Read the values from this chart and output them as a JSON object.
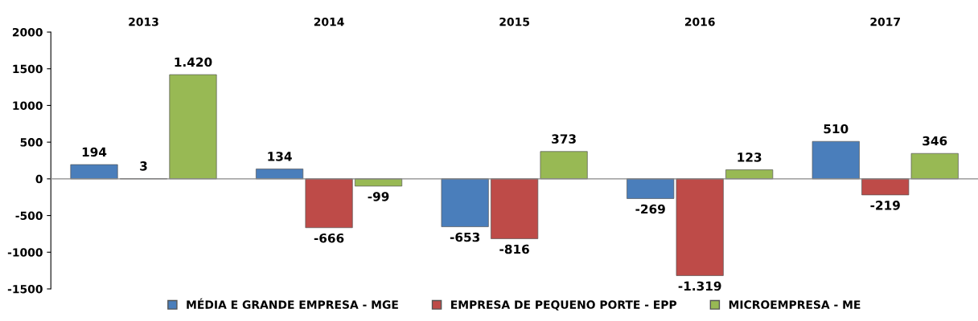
{
  "chart_data": {
    "type": "bar",
    "categories": [
      "2013",
      "2014",
      "2015",
      "2016",
      "2017"
    ],
    "series": [
      {
        "name": "MÉDIA E GRANDE EMPRESA - MGE",
        "color": "#4a7ebb",
        "values": [
          194,
          134,
          -653,
          -269,
          510
        ],
        "value_labels": [
          "194",
          "134",
          "-653",
          "-269",
          "510"
        ]
      },
      {
        "name": "EMPRESA DE PEQUENO PORTE - EPP",
        "color": "#be4b48",
        "values": [
          3,
          -666,
          -816,
          -1319,
          -219
        ],
        "value_labels": [
          "3",
          "-666",
          "-816",
          "-1.319",
          "-219"
        ]
      },
      {
        "name": "MICROEMPRESA - ME",
        "color": "#98b954",
        "values": [
          1420,
          -99,
          373,
          123,
          346
        ],
        "value_labels": [
          "1.420",
          "-99",
          "373",
          "123",
          "346"
        ]
      }
    ],
    "ylim": [
      -1500,
      2000
    ],
    "yticks": [
      -1500,
      -1000,
      -500,
      0,
      500,
      1000,
      1500,
      2000
    ],
    "legend": "bottom"
  }
}
